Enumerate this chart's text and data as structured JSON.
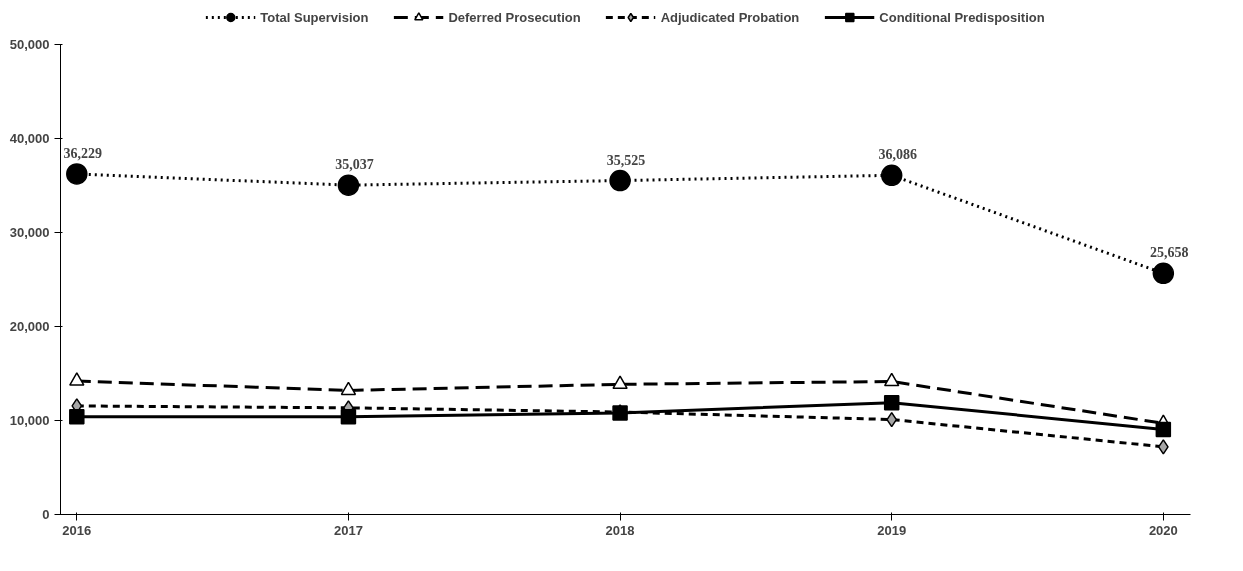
{
  "chart_data": {
    "type": "line",
    "categories": [
      "2016",
      "2017",
      "2018",
      "2019",
      "2020"
    ],
    "ylim": [
      0,
      50000
    ],
    "yticks": [
      0,
      {
        "value": 10000,
        "label": "10,000"
      },
      {
        "value": 20000,
        "label": "20,000"
      },
      {
        "value": 30000,
        "label": "30,000"
      },
      {
        "value": 40000,
        "label": "40,000"
      },
      {
        "value": 50000,
        "label": "50,000"
      }
    ],
    "grid": false,
    "legend": "top",
    "series": [
      {
        "name": "Total Supervision",
        "color": "#000000",
        "marker": "circle",
        "line_style": "dotted",
        "values": [
          36229,
          35037,
          35525,
          36086,
          25658
        ],
        "value_labels": [
          "36,229",
          "35,037",
          "35,525",
          "36,086",
          "25,658"
        ]
      },
      {
        "name": "Deferred Prosecution",
        "color": "#000000",
        "marker": "triangle",
        "line_style": "dashed",
        "values": [
          14200,
          13200,
          13850,
          14150,
          9700
        ]
      },
      {
        "name": "Adjudicated Probation",
        "color": "#000000",
        "marker": "diamond",
        "line_style": "dashed",
        "values": [
          11550,
          11350,
          10900,
          10100,
          7200
        ]
      },
      {
        "name": "Conditional Predisposition",
        "color": "#000000",
        "marker": "square",
        "line_style": "solid",
        "values": [
          10400,
          10400,
          10800,
          11900,
          9050
        ]
      }
    ]
  }
}
